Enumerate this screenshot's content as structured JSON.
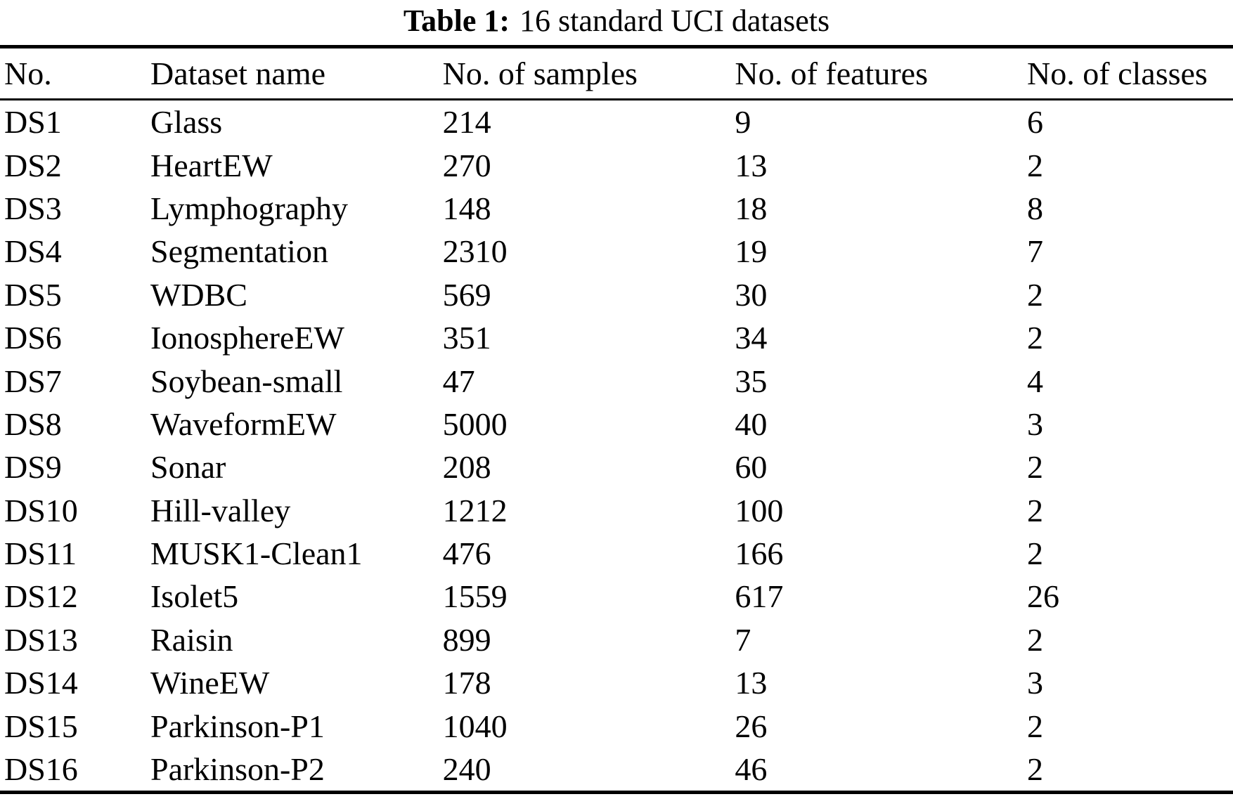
{
  "table": {
    "caption": {
      "label": "Table 1:",
      "text": "16 standard UCI datasets"
    },
    "columns": [
      "No.",
      "Dataset name",
      "No. of samples",
      "No. of features",
      "No. of classes"
    ],
    "rows": [
      {
        "no": "DS1",
        "name": "Glass",
        "samples": "214",
        "features": "9",
        "classes": "6"
      },
      {
        "no": "DS2",
        "name": "HeartEW",
        "samples": "270",
        "features": "13",
        "classes": "2"
      },
      {
        "no": "DS3",
        "name": "Lymphography",
        "samples": "148",
        "features": "18",
        "classes": "8"
      },
      {
        "no": "DS4",
        "name": "Segmentation",
        "samples": "2310",
        "features": "19",
        "classes": "7"
      },
      {
        "no": "DS5",
        "name": "WDBC",
        "samples": "569",
        "features": "30",
        "classes": "2"
      },
      {
        "no": "DS6",
        "name": "IonosphereEW",
        "samples": "351",
        "features": "34",
        "classes": "2"
      },
      {
        "no": "DS7",
        "name": "Soybean-small",
        "samples": "47",
        "features": "35",
        "classes": "4"
      },
      {
        "no": "DS8",
        "name": "WaveformEW",
        "samples": "5000",
        "features": "40",
        "classes": "3"
      },
      {
        "no": "DS9",
        "name": "Sonar",
        "samples": "208",
        "features": "60",
        "classes": "2"
      },
      {
        "no": "DS10",
        "name": "Hill-valley",
        "samples": "1212",
        "features": "100",
        "classes": "2"
      },
      {
        "no": "DS11",
        "name": "MUSK1-Clean1",
        "samples": "476",
        "features": "166",
        "classes": "2"
      },
      {
        "no": "DS12",
        "name": "Isolet5",
        "samples": "1559",
        "features": "617",
        "classes": "26"
      },
      {
        "no": "DS13",
        "name": "Raisin",
        "samples": "899",
        "features": "7",
        "classes": "2"
      },
      {
        "no": "DS14",
        "name": "WineEW",
        "samples": "178",
        "features": "13",
        "classes": "3"
      },
      {
        "no": "DS15",
        "name": "Parkinson-P1",
        "samples": "1040",
        "features": "26",
        "classes": "2"
      },
      {
        "no": "DS16",
        "name": "Parkinson-P2",
        "samples": "240",
        "features": "46",
        "classes": "2"
      }
    ]
  }
}
